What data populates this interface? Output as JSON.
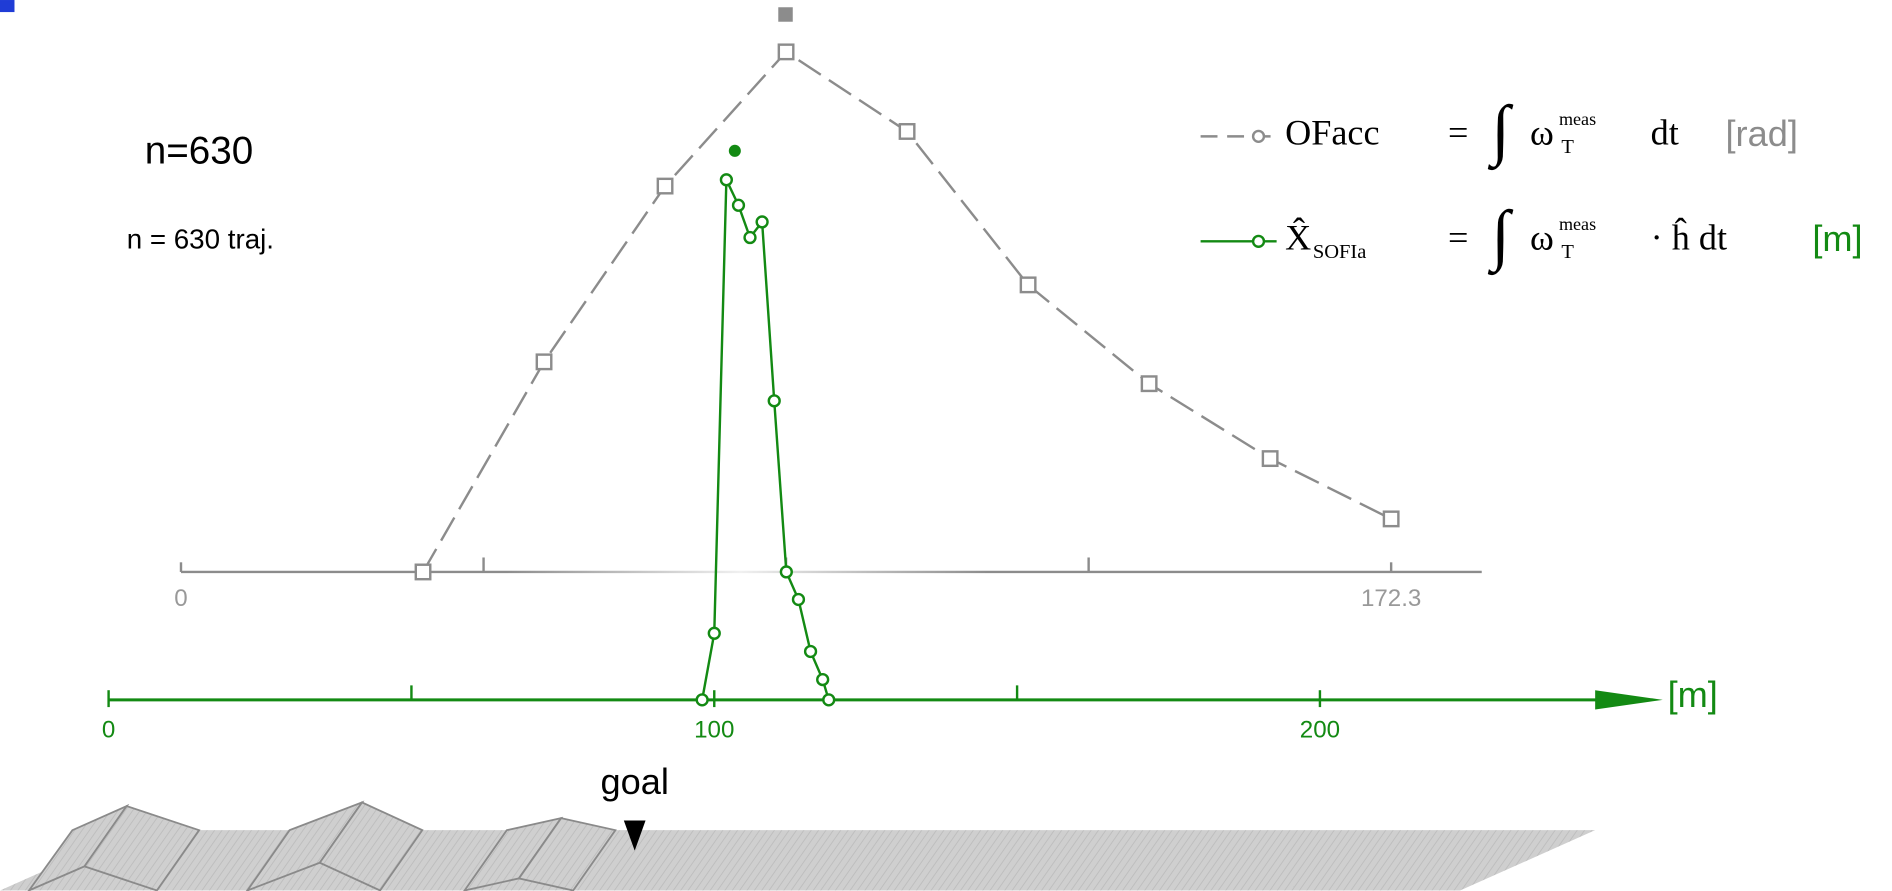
{
  "annotations": {
    "n_label": "n=630",
    "n_traj": "n = 630 traj.",
    "goal": "goal"
  },
  "chart_data": [
    {
      "type": "line",
      "xlim": [
        0,
        185.2
      ],
      "xticks": [
        0,
        172.3
      ],
      "xminor": [
        43.08,
        86.15,
        129.23
      ],
      "ylim": [
        0,
        1
      ],
      "series": [
        {
          "name": "OFacc",
          "name_sub": "",
          "color": "#8c8c8c",
          "dashed": true,
          "marker": "square",
          "formula": [
            "=",
            "∫",
            "ω",
            "meas",
            "T",
            "dt"
          ],
          "unit": "[rad]",
          "x": [
            34.46,
            51.69,
            68.92,
            86.15,
            103.38,
            120.61,
            137.84,
            155.07,
            172.3
          ],
          "values": [
            0,
            0.404,
            0.742,
            1.0,
            0.847,
            0.552,
            0.362,
            0.218,
            0.102
          ]
        }
      ]
    },
    {
      "type": "line",
      "xlim": [
        0,
        256.6
      ],
      "xticks": [
        0,
        100,
        200
      ],
      "xminor": [
        50,
        150
      ],
      "x_label": "[m]",
      "ylim": [
        0,
        1
      ],
      "series": [
        {
          "name": "X̂",
          "name_sub": "SOFIa",
          "color": "#138a13",
          "dashed": false,
          "marker": "circle",
          "formula": [
            "=",
            "∫",
            "ω",
            "meas",
            "T",
            "· ĥ dt"
          ],
          "unit": "[m]",
          "x": [
            98.0,
            100.0,
            102.0,
            104.0,
            105.9,
            107.9,
            109.9,
            111.9,
            113.9,
            115.9,
            117.9,
            118.9
          ],
          "values": [
            0,
            0.128,
            1.0,
            0.951,
            0.889,
            0.919,
            0.575,
            0.246,
            0.193,
            0.093,
            0.039,
            0
          ]
        }
      ]
    }
  ]
}
